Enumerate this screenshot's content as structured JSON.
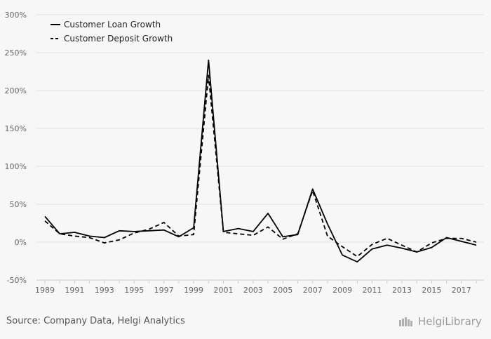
{
  "chart_data": {
    "type": "line",
    "x": [
      1989,
      1990,
      1991,
      1992,
      1993,
      1994,
      1995,
      1996,
      1997,
      1998,
      1999,
      2000,
      2001,
      2002,
      2003,
      2004,
      2005,
      2006,
      2007,
      2008,
      2009,
      2010,
      2011,
      2012,
      2013,
      2014,
      2015,
      2016,
      2017,
      2018
    ],
    "x_tick_labels": [
      "1989",
      "1991",
      "1993",
      "1995",
      "1997",
      "1999",
      "2001",
      "2003",
      "2005",
      "2007",
      "2009",
      "2011",
      "2013",
      "2015",
      "2017"
    ],
    "y_tick_labels": [
      "300%",
      "250%",
      "200%",
      "150%",
      "100%",
      "50%",
      "0%",
      "-50%"
    ],
    "ylim": [
      -50,
      300
    ],
    "grid": true,
    "legend_position": "top-left",
    "series": [
      {
        "name": "Customer Loan Growth",
        "style": "solid",
        "color": "#000000",
        "values": [
          34,
          11,
          13,
          8,
          6,
          15,
          14,
          15,
          16,
          7,
          19,
          240,
          14,
          18,
          14,
          38,
          7,
          10,
          70,
          24,
          -17,
          -26,
          -9,
          -4,
          -8,
          -13,
          -7,
          6,
          1,
          -4
        ]
      },
      {
        "name": "Customer Deposit Growth",
        "style": "dashed",
        "color": "#000000",
        "values": [
          28,
          11,
          8,
          6,
          -1,
          3,
          12,
          17,
          26,
          8,
          10,
          220,
          13,
          11,
          9,
          20,
          4,
          11,
          68,
          8,
          -6,
          -19,
          -3,
          5,
          -4,
          -13,
          -1,
          5,
          5,
          0
        ]
      }
    ]
  },
  "footer": {
    "source": "Source: Company Data, Helgi Analytics",
    "logo_text": "HelgiLibrary"
  }
}
